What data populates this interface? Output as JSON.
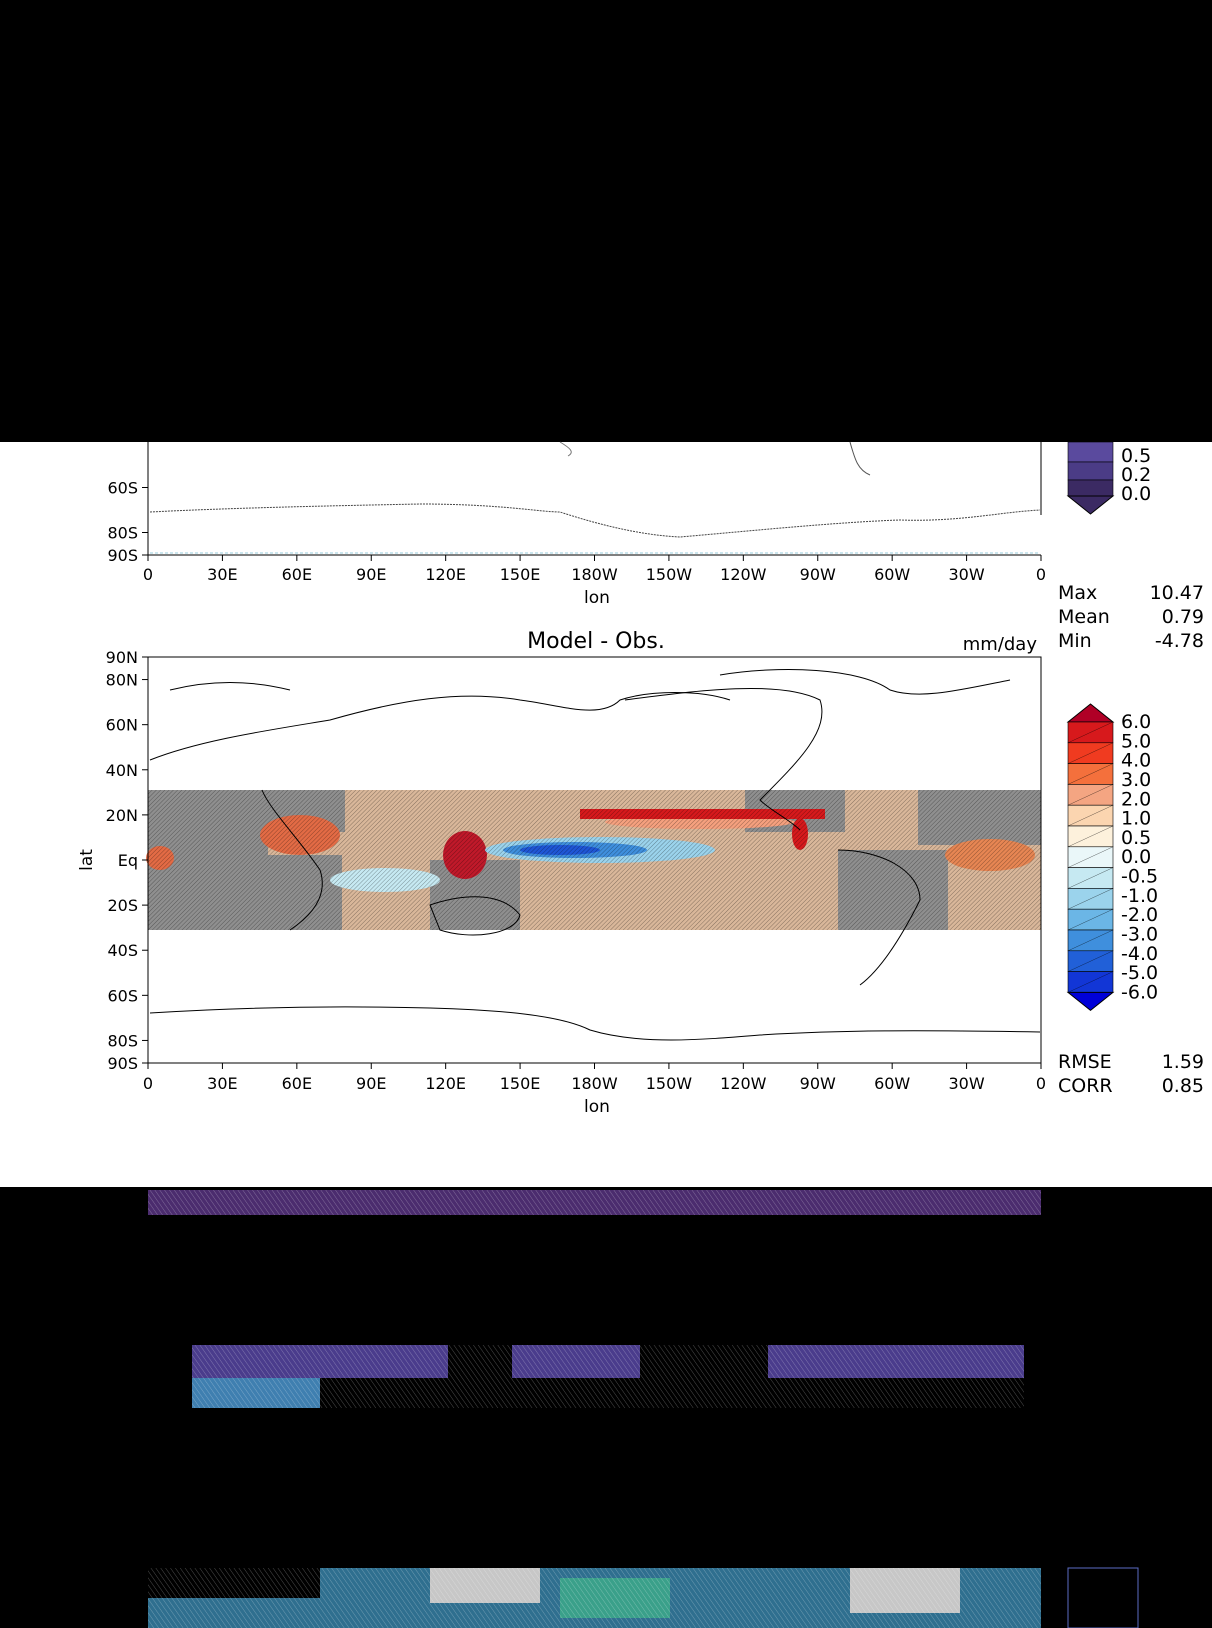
{
  "chart_data": [
    {
      "type": "heatmap",
      "panel": "top (mostly cropped)",
      "xlabel": "lon",
      "x_ticks": [
        "0",
        "30E",
        "60E",
        "90E",
        "120E",
        "150E",
        "180W",
        "150W",
        "120W",
        "90W",
        "60W",
        "30W",
        "0"
      ],
      "y_ticks_visible": [
        "60S",
        "80S",
        "90S"
      ],
      "colorbar_labels_visible": [
        "0.5",
        "0.2",
        "0.0"
      ],
      "colorbar_colors": [
        "#3b2a63",
        "#4b3c86",
        "#5a4a9e"
      ],
      "stats": [
        {
          "label": "Max",
          "value": "10.47"
        },
        {
          "label": "Mean",
          "value": "0.79"
        },
        {
          "label": "Min",
          "value": "-4.78"
        }
      ]
    },
    {
      "type": "heatmap",
      "title": "Model - Obs.",
      "units": "mm/day",
      "xlabel": "lon",
      "ylabel": "lat",
      "x_ticks": [
        "0",
        "30E",
        "60E",
        "90E",
        "120E",
        "150E",
        "180W",
        "150W",
        "120W",
        "90W",
        "60W",
        "30W",
        "0"
      ],
      "y_ticks": [
        "90N",
        "80N",
        "60N",
        "40N",
        "20N",
        "Eq",
        "20S",
        "40S",
        "60S",
        "80S",
        "90S"
      ],
      "colorbar_labels": [
        "6.0",
        "5.0",
        "4.0",
        "3.0",
        "2.0",
        "1.0",
        "0.5",
        "0.0",
        "-0.5",
        "-1.0",
        "-2.0",
        "-3.0",
        "-4.0",
        "-5.0",
        "-6.0"
      ],
      "colorbar_colors": [
        "#b00026",
        "#d7191c",
        "#f03b20",
        "#f4703c",
        "#f4a582",
        "#fbd5b0",
        "#fdf1dc",
        "#eaf7f9",
        "#c6e9f2",
        "#9bd3ec",
        "#6bb6e6",
        "#3f8fdd",
        "#2160d8",
        "#1236d6",
        "#0000d8"
      ],
      "stats": [
        {
          "label": "RMSE",
          "value": "1.59"
        },
        {
          "label": "CORR",
          "value": "0.85"
        }
      ]
    }
  ]
}
